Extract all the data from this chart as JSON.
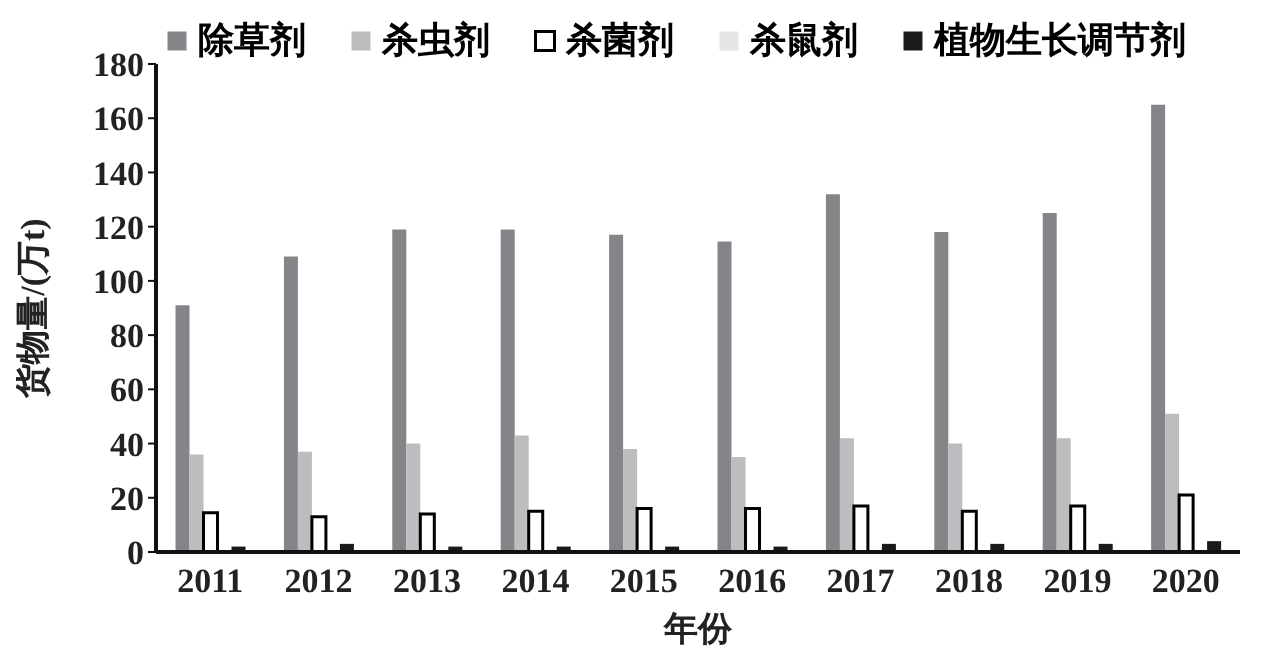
{
  "chart_data": {
    "type": "bar",
    "xlabel": "年份",
    "ylabel": "货物量/(万t)",
    "categories": [
      "2011",
      "2012",
      "2013",
      "2014",
      "2015",
      "2016",
      "2017",
      "2018",
      "2019",
      "2020"
    ],
    "series": [
      {
        "name": "除草剂",
        "color": "#858589",
        "values": [
          91,
          109,
          119,
          119,
          117,
          114.5,
          132,
          118,
          125,
          165
        ]
      },
      {
        "name": "杀虫剂",
        "color": "#bdbdbf",
        "values": [
          36,
          37,
          40,
          43,
          38,
          35,
          42,
          40,
          42,
          51
        ]
      },
      {
        "name": "杀菌剂",
        "color": "#ffffff",
        "values": [
          14.5,
          13,
          14,
          15,
          16,
          16,
          17,
          15,
          17,
          21
        ]
      },
      {
        "name": "杀鼠剂",
        "color": "#e6e6e6",
        "values": [
          0,
          0,
          0,
          0,
          0,
          0,
          0,
          0,
          0,
          0
        ]
      },
      {
        "name": "植物生长调节剂",
        "color": "#1a1a1a",
        "values": [
          2,
          3,
          2,
          2,
          2,
          2,
          3,
          3,
          3,
          4
        ]
      }
    ],
    "ylim": [
      0,
      180
    ],
    "yticks": [
      0,
      20,
      40,
      60,
      80,
      100,
      120,
      140,
      160,
      180
    ],
    "grid": false,
    "legend": "top"
  }
}
